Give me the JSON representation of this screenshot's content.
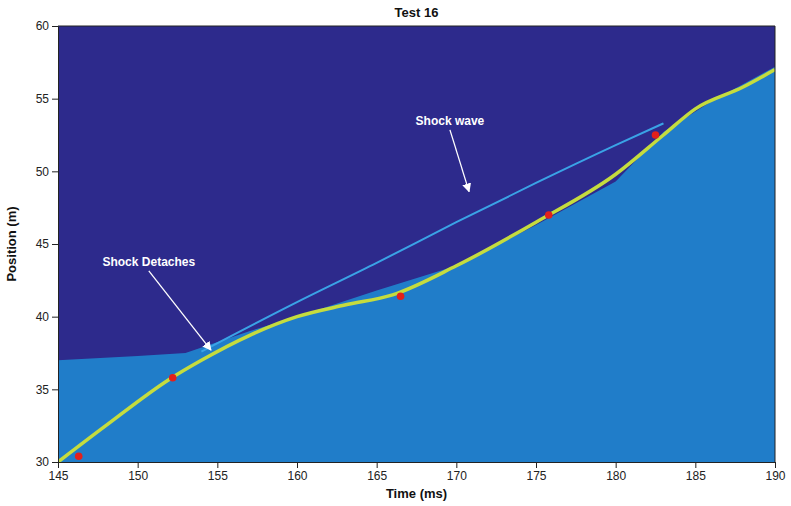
{
  "chart_data": {
    "type": "line",
    "title": "Test 16",
    "x_label": "Time (ms)",
    "y_label": "Position (m)",
    "xlim": [
      145,
      190
    ],
    "xticks": [
      145,
      150,
      155,
      160,
      165,
      170,
      175,
      180,
      185,
      190
    ],
    "ylim": [
      30,
      60
    ],
    "yticks": [
      30,
      35,
      40,
      45,
      50,
      55,
      60
    ],
    "grid": false,
    "series": [
      {
        "type": "area",
        "color": "#1f86cf",
        "x": [
          145,
          150,
          153,
          157,
          160,
          165,
          170,
          175,
          180,
          183,
          186,
          190
        ],
        "values": [
          37,
          37.3,
          37.5,
          39,
          40,
          41.8,
          43.5,
          46.3,
          49.3,
          52.7,
          54.8,
          57.2
        ]
      },
      {
        "type": "line",
        "color": "#c5dc3e",
        "line_style": "solid",
        "x": [
          145,
          148,
          152,
          154,
          157,
          160,
          163,
          166,
          170,
          175,
          180,
          183,
          185,
          188,
          190
        ],
        "values": [
          30,
          32.5,
          35.7,
          37,
          38.7,
          40,
          40.8,
          41.5,
          43.5,
          46.5,
          49.8,
          52.5,
          54.3,
          55.8,
          57
        ]
      },
      {
        "type": "line",
        "color": "#3aa3e6",
        "line_style": "solid",
        "x": [
          154,
          160,
          165,
          170,
          175,
          180,
          183
        ],
        "values": [
          37.6,
          41,
          43.7,
          46.5,
          49.2,
          51.8,
          53.3
        ]
      },
      {
        "type": "scatter",
        "color": "#e3201b",
        "marker": "circle",
        "x": [
          146.3,
          152.2,
          166.5,
          175.8,
          182.5
        ],
        "values": [
          30.4,
          35.8,
          41.4,
          47,
          52.5
        ]
      }
    ],
    "annotations": [
      {
        "text": "Shock Detaches",
        "x": 150.7,
        "y": 43.5,
        "arrow_x": 154.6,
        "arrow_y": 37.7
      },
      {
        "text": "Shock wave",
        "x": 169.6,
        "y": 53.2,
        "arrow_x": 170.8,
        "arrow_y": 48.6
      }
    ]
  }
}
